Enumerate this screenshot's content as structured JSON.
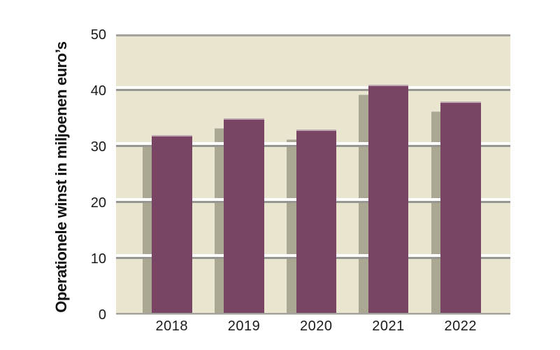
{
  "chart_data": {
    "type": "bar",
    "title": "",
    "categories": [
      "2018",
      "2019",
      "2020",
      "2021",
      "2022"
    ],
    "values": [
      32,
      35,
      33,
      41,
      38
    ],
    "series": [
      {
        "name": "Operationele winst",
        "values": [
          32,
          35,
          33,
          41,
          38
        ]
      }
    ],
    "xlabel": "",
    "ylabel": "Operationele winst in miljoenen euro’s",
    "ylim": [
      0,
      50
    ],
    "yticks": [
      0,
      10,
      20,
      30,
      40,
      50
    ],
    "grid": true,
    "legend": "none",
    "colors": {
      "bar": "#7a4565",
      "bar_top_edge": "#c0a9b3",
      "bar_shadow": "#aaa892",
      "plot_background": "#e9e5cf",
      "gridline": "#96958f",
      "gridline_highlight": "#ffffff",
      "axis_line": "#a3a29c",
      "axis_line_light": "#d8d7d2",
      "text": "#1a1a1a",
      "page_background": "#ffffff"
    }
  }
}
